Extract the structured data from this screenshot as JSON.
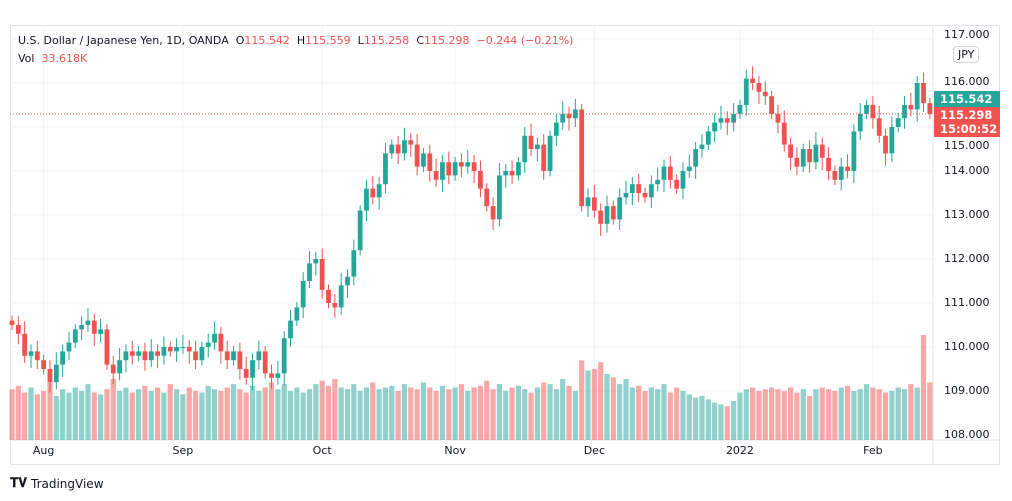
{
  "header": {
    "symbol": "U.S. Dollar / Japanese Yen, 1D, OANDA",
    "open_label": "O",
    "open": "115.542",
    "high_label": "H",
    "high": "115.559",
    "low_label": "L",
    "low": "115.258",
    "close_label": "C",
    "close": "115.298",
    "change": "−0.244 (−0.21%)",
    "vol_label": "Vol",
    "vol": "33.618K"
  },
  "currency_button": "JPY",
  "price_axis": [
    "116.000",
    "115.000",
    "114.000",
    "113.000",
    "112.000",
    "111.000",
    "110.000",
    "109.000",
    "108.000",
    "117.000"
  ],
  "last_open_label": "115.542",
  "last_price_label": "115.298",
  "countdown": "15:00:52",
  "time_axis": [
    {
      "label": "Aug",
      "i": 5
    },
    {
      "label": "Sep",
      "i": 27
    },
    {
      "label": "Oct",
      "i": 49
    },
    {
      "label": "Nov",
      "i": 70
    },
    {
      "label": "Dec",
      "i": 92
    },
    {
      "label": "2022",
      "i": 115
    },
    {
      "label": "Feb",
      "i": 136
    }
  ],
  "branding": "TradingView",
  "colors": {
    "up": "#26a69a",
    "down": "#ef5350",
    "grid": "#f0f3fa"
  },
  "chart_data": {
    "type": "candlestick",
    "ylim": [
      108,
      117
    ],
    "closes": [
      110.5,
      110.3,
      109.8,
      109.9,
      109.7,
      109.5,
      109.2,
      109.6,
      109.9,
      110.1,
      110.4,
      110.5,
      110.6,
      110.3,
      110.4,
      109.6,
      109.4,
      109.7,
      109.9,
      109.8,
      109.9,
      109.7,
      109.9,
      109.8,
      110.0,
      109.9,
      110.0,
      110.0,
      109.9,
      109.7,
      110.0,
      110.1,
      110.3,
      109.9,
      109.7,
      109.9,
      109.5,
      109.3,
      109.7,
      109.9,
      109.4,
      109.3,
      109.4,
      110.2,
      110.6,
      110.9,
      111.5,
      111.9,
      112.0,
      111.3,
      111.0,
      110.9,
      111.4,
      111.6,
      112.2,
      113.1,
      113.6,
      113.4,
      113.7,
      114.4,
      114.6,
      114.4,
      114.7,
      114.6,
      114.1,
      114.4,
      114.0,
      113.8,
      114.2,
      113.9,
      114.2,
      114.1,
      114.2,
      114.0,
      113.6,
      113.2,
      112.9,
      113.9,
      114.0,
      113.9,
      114.2,
      114.8,
      114.5,
      114.6,
      114.0,
      114.8,
      115.1,
      115.3,
      115.2,
      115.4,
      113.2,
      113.4,
      113.1,
      112.8,
      113.2,
      112.9,
      113.4,
      113.5,
      113.7,
      113.5,
      113.4,
      113.7,
      113.8,
      114.1,
      113.8,
      113.6,
      114.0,
      114.1,
      114.5,
      114.6,
      114.9,
      115.1,
      115.2,
      115.1,
      115.3,
      115.5,
      116.1,
      116.0,
      115.8,
      115.7,
      115.3,
      115.1,
      114.6,
      114.3,
      114.1,
      114.5,
      114.2,
      114.6,
      114.3,
      114.0,
      113.8,
      114.1,
      114.0,
      114.9,
      115.3,
      115.5,
      115.2,
      114.8,
      114.4,
      115.0,
      115.2,
      115.5,
      115.4,
      116.0,
      115.542,
      115.298
    ],
    "volumes": [
      30,
      32,
      28,
      31,
      27,
      29,
      34,
      26,
      30,
      28,
      31,
      29,
      33,
      28,
      27,
      30,
      36,
      29,
      31,
      28,
      30,
      32,
      29,
      31,
      28,
      33,
      30,
      27,
      31,
      29,
      28,
      32,
      30,
      29,
      31,
      33,
      30,
      28,
      32,
      29,
      31,
      34,
      30,
      33,
      29,
      31,
      28,
      30,
      33,
      35,
      32,
      36,
      31,
      30,
      33,
      29,
      31,
      34,
      30,
      31,
      32,
      29,
      33,
      31,
      30,
      34,
      31,
      29,
      32,
      30,
      31,
      33,
      29,
      31,
      32,
      35,
      30,
      33,
      29,
      31,
      32,
      30,
      28,
      31,
      34,
      33,
      30,
      36,
      32,
      29,
      47,
      41,
      42,
      46,
      39,
      37,
      33,
      36,
      31,
      32,
      29,
      31,
      30,
      33,
      28,
      31,
      29,
      27,
      25,
      26,
      24,
      22,
      21,
      20,
      23,
      28,
      30,
      31,
      29,
      30,
      31,
      30,
      29,
      31,
      28,
      30,
      26,
      30,
      31,
      30,
      29,
      31,
      32,
      29,
      30,
      33,
      31,
      30,
      28,
      29,
      31,
      30,
      33,
      31,
      62,
      34
    ]
  }
}
